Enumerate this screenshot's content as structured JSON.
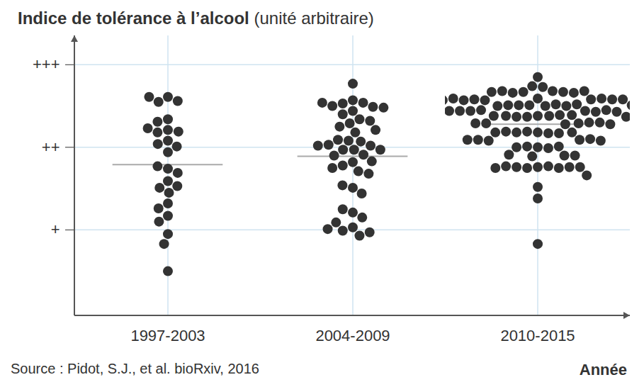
{
  "chart_data": {
    "type": "scatter",
    "title": "Indice de tolérance à l’alcool",
    "subtitle": "(unité arbitraire)",
    "x_label": "Année",
    "caption": "Source : Pidot, S.J., et al. bioRxiv, 2016",
    "categories": [
      "1997-2003",
      "2004-2009",
      "2010-2015"
    ],
    "values": [
      [
        2.61,
        2.55,
        2.56,
        2.61,
        2.34,
        2.31,
        2.21,
        2.19,
        2.18,
        2.23,
        2.08,
        2.04,
        2.01,
        1.94,
        1.74,
        1.77,
        1.69,
        1.59,
        1.51,
        1.53,
        1.45,
        1.32,
        1.26,
        1.17,
        1.1,
        0.95,
        0.83,
        0.5
      ],
      [
        2.77,
        2.57,
        2.53,
        2.54,
        2.49,
        2.5,
        2.48,
        2.54,
        2.44,
        2.4,
        2.34,
        2.32,
        2.29,
        2.25,
        2.18,
        2.21,
        2.08,
        2.07,
        2.09,
        2.02,
        1.97,
        2.03,
        1.97,
        1.97,
        2.02,
        1.91,
        1.9,
        1.82,
        1.83,
        1.78,
        1.71,
        1.68,
        1.75,
        1.51,
        1.54,
        1.44,
        1.21,
        1.25,
        1.15,
        1.03,
        0.99,
        0.93,
        1.09,
        0.97,
        1.01
      ],
      [
        2.85,
        2.74,
        2.73,
        2.68,
        2.67,
        2.66,
        2.67,
        2.68,
        2.66,
        2.67,
        2.68,
        2.59,
        2.58,
        2.57,
        2.58,
        2.59,
        2.57,
        2.58,
        2.59,
        2.58,
        2.57,
        2.51,
        2.5,
        2.52,
        2.51,
        2.5,
        2.51,
        2.52,
        2.5,
        2.51,
        2.5,
        2.44,
        2.45,
        2.43,
        2.44,
        2.45,
        2.44,
        2.43,
        2.44,
        2.45,
        2.44,
        2.38,
        2.37,
        2.38,
        2.39,
        2.37,
        2.38,
        2.39,
        2.38,
        2.37,
        2.29,
        2.3,
        2.28,
        2.29,
        2.3,
        2.29,
        2.28,
        2.18,
        2.19,
        2.17,
        2.18,
        2.19,
        2.18,
        2.17,
        2.18,
        2.09,
        2.08,
        2.1,
        2.09,
        2.08,
        2.09,
        2.0,
        2.01,
        1.99,
        2.0,
        2.01,
        1.9,
        1.91,
        1.89,
        1.9,
        1.76,
        1.75,
        1.77,
        1.76,
        1.75,
        1.76,
        1.77,
        1.75,
        1.76,
        1.66,
        1.52,
        1.38,
        0.83
      ]
    ],
    "means": [
      1.79,
      1.89,
      2.28
    ],
    "color": "#333333",
    "marker": "circle",
    "ylim": [
      -0.04,
      3.35
    ],
    "yticks": [
      {
        "value": 1,
        "label": "+"
      },
      {
        "value": 2,
        "label": "++"
      },
      {
        "value": 3,
        "label": "+++"
      }
    ],
    "grid": true
  }
}
